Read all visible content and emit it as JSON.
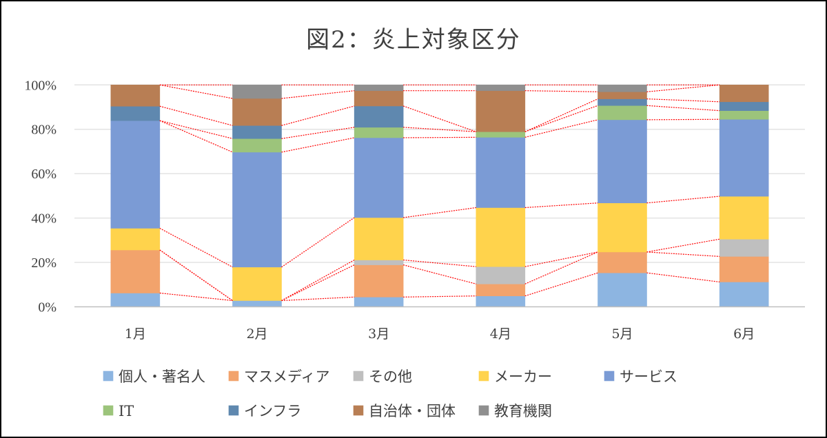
{
  "chart_data": {
    "type": "bar",
    "stacked": "percent",
    "title": "図2：炎上対象区分",
    "xlabel": "",
    "ylabel": "",
    "categories": [
      "1月",
      "2月",
      "3月",
      "4月",
      "5月",
      "6月"
    ],
    "ylim": [
      0,
      100
    ],
    "yticks": [
      0,
      20,
      40,
      60,
      80,
      100
    ],
    "ytick_labels": [
      "0%",
      "20%",
      "40%",
      "60%",
      "80%",
      "100%"
    ],
    "grid": true,
    "series_lines": true,
    "series_line_color": "#FF0000",
    "legend_position": "bottom",
    "series": [
      {
        "name": "個人・著名人",
        "color": "#8DB5E1",
        "values": [
          6.2,
          2.8,
          4.4,
          4.9,
          15.3,
          11.2
        ]
      },
      {
        "name": "マスメディア",
        "color": "#F2A36C",
        "values": [
          19.4,
          0.0,
          14.5,
          5.4,
          9.4,
          11.5
        ]
      },
      {
        "name": "その他",
        "color": "#BFBFBF",
        "values": [
          0.0,
          0.0,
          2.2,
          7.8,
          0.0,
          7.8
        ]
      },
      {
        "name": "メーカー",
        "color": "#FFD34C",
        "values": [
          9.8,
          15.1,
          19.1,
          26.6,
          22.1,
          19.3
        ]
      },
      {
        "name": "サービス",
        "color": "#7B9BD5",
        "values": [
          48.5,
          51.8,
          36.0,
          31.7,
          37.5,
          34.7
        ]
      },
      {
        "name": "IT",
        "color": "#9CC47B",
        "values": [
          0.0,
          6.1,
          4.7,
          2.5,
          6.4,
          3.9
        ]
      },
      {
        "name": "インフラ",
        "color": "#5F88AF",
        "values": [
          6.5,
          5.9,
          9.6,
          0.0,
          3.0,
          4.0
        ]
      },
      {
        "name": "自治体・団体",
        "color": "#B87E54",
        "values": [
          9.6,
          12.2,
          6.9,
          18.5,
          3.2,
          7.6
        ]
      },
      {
        "name": "教育機関",
        "color": "#8F8F8F",
        "values": [
          0.0,
          6.1,
          2.6,
          2.6,
          3.1,
          0.0
        ]
      }
    ]
  }
}
